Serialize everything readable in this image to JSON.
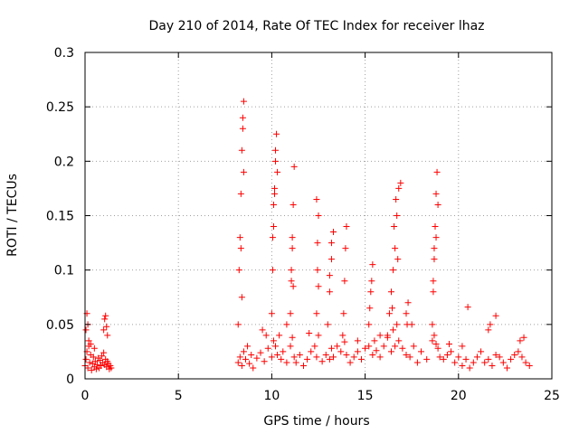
{
  "chart_data": {
    "type": "scatter",
    "title": "Day 210 of 2014, Rate Of TEC Index for receiver lhaz",
    "xlabel": "GPS time / hours",
    "ylabel": "ROTI / TECUs",
    "xlim": [
      0,
      25
    ],
    "ylim": [
      0,
      0.3
    ],
    "xticks": [
      "0",
      "5",
      "10",
      "15",
      "20",
      "25"
    ],
    "yticks": [
      "0",
      "0.05",
      "0.1",
      "0.15",
      "0.2",
      "0.25",
      "0.3"
    ],
    "grid": true,
    "marker": "plus",
    "color": "#ff0000",
    "series": [
      {
        "x": [
          0.0,
          0.05,
          0.1,
          0.15,
          0.2,
          0.25,
          0.3,
          0.35,
          0.4,
          0.45,
          0.5,
          0.55,
          0.6,
          0.65,
          0.7,
          0.75,
          0.8,
          0.85,
          0.9,
          0.95,
          1.0,
          1.05,
          1.1,
          1.15,
          1.2,
          1.25,
          1.3,
          1.35,
          1.4,
          8.2,
          8.3,
          8.4,
          8.5,
          8.6,
          8.7,
          8.8,
          8.9,
          9.0,
          9.2,
          9.4,
          9.6,
          9.8,
          10.0,
          10.1,
          10.2,
          10.3,
          10.4,
          10.5,
          10.6,
          10.8,
          11.0,
          11.1,
          11.2,
          11.3,
          11.5,
          11.7,
          11.9,
          12.1,
          12.3,
          12.4,
          12.5,
          12.7,
          12.9,
          13.1,
          13.2,
          13.3,
          13.5,
          13.7,
          13.9,
          14.0,
          14.2,
          14.4,
          14.6,
          14.8,
          15.0,
          15.2,
          15.4,
          15.5,
          15.6,
          15.8,
          16.0,
          16.2,
          16.4,
          16.5,
          16.6,
          16.7,
          16.8,
          17.0,
          17.2,
          17.4,
          17.6,
          17.8,
          18.0,
          18.3,
          18.6,
          18.7,
          18.8,
          18.9,
          19.0,
          19.2,
          19.4,
          19.6,
          19.8,
          20.0,
          20.2,
          20.4,
          20.6,
          20.8,
          21.0,
          21.2,
          21.4,
          21.6,
          21.8,
          22.0,
          22.2,
          22.4,
          22.6,
          22.8,
          23.0,
          23.2,
          23.4,
          23.6,
          23.8,
          8.2,
          8.25,
          8.3,
          8.35,
          8.4,
          8.45,
          8.5,
          8.4,
          8.35,
          8.5,
          8.45,
          10.0,
          10.05,
          10.1,
          10.15,
          10.2,
          10.25,
          10.3,
          10.1,
          10.2,
          10.05,
          10.15,
          11.0,
          11.05,
          11.1,
          11.15,
          11.2,
          11.1,
          11.05,
          11.15,
          12.4,
          12.45,
          12.5,
          12.4,
          12.45,
          12.5,
          13.0,
          13.1,
          13.2,
          13.3,
          13.1,
          13.2,
          13.8,
          13.9,
          14.0,
          13.85,
          13.95,
          15.2,
          15.3,
          15.4,
          15.25,
          15.35,
          16.2,
          16.3,
          16.4,
          16.5,
          16.6,
          16.7,
          16.8,
          16.9,
          16.55,
          16.65,
          16.75,
          16.45,
          17.2,
          17.3,
          17.25,
          18.6,
          18.65,
          18.7,
          18.75,
          18.8,
          18.85,
          18.9,
          18.7,
          18.8,
          18.65,
          0.05,
          0.1,
          0.15,
          0.2,
          1.0,
          1.05,
          1.1,
          1.15,
          1.2,
          0.3,
          0.5,
          20.5,
          21.6,
          21.7,
          22.0,
          23.3,
          23.5,
          9.5,
          9.7,
          10.8,
          12.0,
          14.6,
          15.8,
          17.5,
          19.5,
          20.2
        ],
        "y": [
          0.012,
          0.018,
          0.025,
          0.01,
          0.03,
          0.015,
          0.022,
          0.008,
          0.014,
          0.02,
          0.011,
          0.016,
          0.009,
          0.013,
          0.019,
          0.01,
          0.017,
          0.012,
          0.021,
          0.015,
          0.024,
          0.013,
          0.018,
          0.011,
          0.016,
          0.014,
          0.009,
          0.012,
          0.01,
          0.015,
          0.02,
          0.012,
          0.025,
          0.018,
          0.03,
          0.014,
          0.022,
          0.01,
          0.019,
          0.024,
          0.016,
          0.028,
          0.02,
          0.035,
          0.03,
          0.022,
          0.04,
          0.018,
          0.025,
          0.015,
          0.03,
          0.038,
          0.02,
          0.015,
          0.022,
          0.012,
          0.018,
          0.025,
          0.03,
          0.02,
          0.04,
          0.016,
          0.022,
          0.018,
          0.028,
          0.02,
          0.03,
          0.025,
          0.034,
          0.022,
          0.015,
          0.02,
          0.025,
          0.018,
          0.028,
          0.03,
          0.022,
          0.035,
          0.026,
          0.02,
          0.03,
          0.038,
          0.025,
          0.045,
          0.03,
          0.05,
          0.035,
          0.028,
          0.022,
          0.02,
          0.03,
          0.015,
          0.025,
          0.018,
          0.035,
          0.04,
          0.032,
          0.028,
          0.02,
          0.018,
          0.022,
          0.025,
          0.015,
          0.02,
          0.012,
          0.018,
          0.01,
          0.015,
          0.02,
          0.025,
          0.015,
          0.018,
          0.012,
          0.022,
          0.02,
          0.015,
          0.01,
          0.018,
          0.022,
          0.025,
          0.02,
          0.015,
          0.012,
          0.05,
          0.1,
          0.13,
          0.17,
          0.21,
          0.24,
          0.255,
          0.075,
          0.12,
          0.19,
          0.23,
          0.06,
          0.1,
          0.14,
          0.17,
          0.2,
          0.225,
          0.19,
          0.16,
          0.21,
          0.13,
          0.175,
          0.06,
          0.09,
          0.13,
          0.16,
          0.195,
          0.12,
          0.1,
          0.085,
          0.06,
          0.1,
          0.15,
          0.165,
          0.125,
          0.085,
          0.05,
          0.08,
          0.11,
          0.135,
          0.095,
          0.125,
          0.04,
          0.09,
          0.14,
          0.06,
          0.12,
          0.05,
          0.08,
          0.105,
          0.065,
          0.09,
          0.04,
          0.06,
          0.08,
          0.1,
          0.12,
          0.15,
          0.175,
          0.18,
          0.14,
          0.165,
          0.11,
          0.065,
          0.06,
          0.07,
          0.05,
          0.05,
          0.08,
          0.11,
          0.14,
          0.17,
          0.19,
          0.16,
          0.12,
          0.13,
          0.09,
          0.045,
          0.06,
          0.05,
          0.035,
          0.045,
          0.055,
          0.058,
          0.048,
          0.04,
          0.032,
          0.028,
          0.066,
          0.045,
          0.05,
          0.058,
          0.035,
          0.038,
          0.045,
          0.04,
          0.05,
          0.042,
          0.035,
          0.04,
          0.05,
          0.032,
          0.03
        ]
      }
    ]
  }
}
